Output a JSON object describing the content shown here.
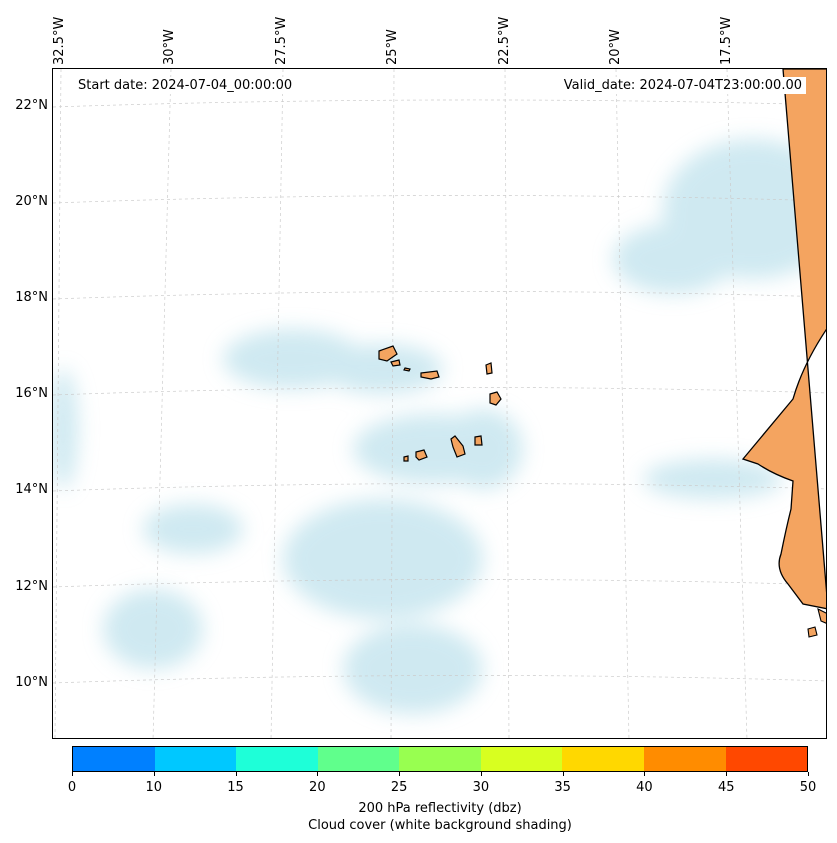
{
  "map": {
    "lon_labels": [
      "32.5°W",
      "30°W",
      "27.5°W",
      "25°W",
      "22.5°W",
      "20°W",
      "17.5°W"
    ],
    "lat_labels": [
      "22°N",
      "20°N",
      "18°N",
      "16°N",
      "14°N",
      "12°N",
      "10°N"
    ],
    "start_date": "Start date: 2024-07-04_00:00:00",
    "valid_date": "Valid_date: 2024-07-04T23:00:00.00",
    "land_color": "#f4a460",
    "cloud_color": "#a8d8e6",
    "grid_style": "dashed light gray"
  },
  "colorbar": {
    "colors": [
      "#0080ff",
      "#00c8ff",
      "#1effd8",
      "#60ff8c",
      "#98ff50",
      "#d8ff20",
      "#ffd800",
      "#ff8c00",
      "#ff4800"
    ],
    "ticks": [
      "0",
      "10",
      "15",
      "20",
      "25",
      "30",
      "35",
      "40",
      "45",
      "50"
    ],
    "label": "200 hPa reflectivity (dbz)",
    "sublabel": "Cloud cover (white background shading)"
  }
}
